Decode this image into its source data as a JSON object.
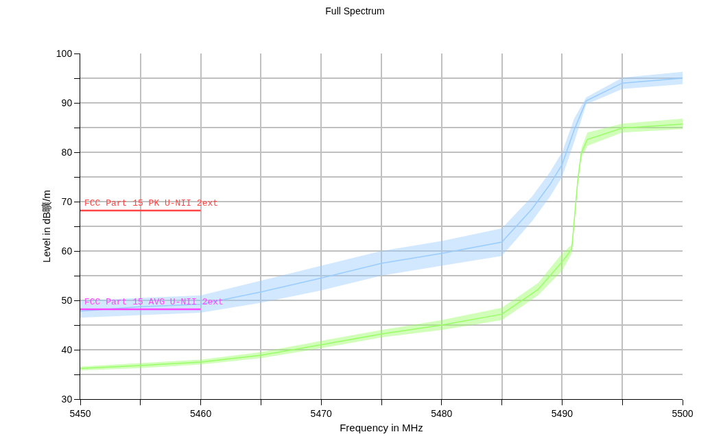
{
  "chart_data": {
    "type": "line",
    "title": "Full Spectrum",
    "xlabel": "Frequency in MHz",
    "ylabel": "Level in dB曠/m",
    "xlim": [
      5450,
      5500
    ],
    "ylim": [
      30,
      100
    ],
    "xticks": [
      5450,
      {
        "value": 5455,
        "label": null
      },
      5460,
      {
        "value": 5465,
        "label": null
      },
      5470,
      {
        "value": 5475,
        "label": null
      },
      5480,
      {
        "value": 5485,
        "label": null
      },
      5490,
      {
        "value": 5495,
        "label": null
      },
      5500
    ],
    "yticks": [
      30,
      {
        "value": 35,
        "label": null
      },
      40,
      {
        "value": 45,
        "label": null
      },
      50,
      {
        "value": 55,
        "label": null
      },
      60,
      {
        "value": 65,
        "label": null
      },
      70,
      {
        "value": 75,
        "label": null
      },
      80,
      {
        "value": 85,
        "label": null
      },
      90,
      {
        "value": 95,
        "label": null
      },
      100
    ],
    "grid": true,
    "legend": false,
    "marker": "none",
    "line_style": "solid",
    "series": [
      {
        "color": "#99ccff",
        "x": [
          5450,
          5455,
          5460,
          5465,
          5470,
          5475,
          5480,
          5485,
          5487.5,
          5489,
          5490,
          5491,
          5492,
          5495,
          5500
        ],
        "values": [
          47.8,
          48.7,
          49.2,
          51.7,
          54.5,
          57.5,
          59.5,
          61.8,
          68.5,
          73.5,
          77.5,
          84.5,
          90.4,
          94,
          95
        ],
        "lower": [
          46.5,
          47,
          47.5,
          49.5,
          52,
          55,
          57,
          59,
          66,
          71,
          75,
          82,
          89.7,
          92.8,
          93.8
        ],
        "upper": [
          50,
          50.5,
          51,
          54,
          57,
          60,
          62,
          64.6,
          71,
          76,
          80,
          86.8,
          91.1,
          95.1,
          96.3
        ]
      },
      {
        "color": "#99ff66",
        "x": [
          5450,
          5455,
          5460,
          5465,
          5470,
          5475,
          5480,
          5485,
          5488,
          5490,
          5490.8,
          5491.3,
          5491.6,
          5492.1,
          5495,
          5500
        ],
        "values": [
          36.2,
          36.8,
          37.5,
          38.9,
          41,
          43.2,
          45,
          47.2,
          52.2,
          57.8,
          60.4,
          74.3,
          79.9,
          82.6,
          84.9,
          85.7
        ],
        "lower": [
          35.8,
          36.3,
          37,
          38.3,
          40.3,
          42.5,
          44,
          46,
          51,
          56,
          59.5,
          73.5,
          79,
          81.3,
          84,
          84.7
        ],
        "upper": [
          36.6,
          37.3,
          38,
          39.5,
          41.8,
          44,
          46,
          48.5,
          53.5,
          59.5,
          61.3,
          75,
          80.8,
          84,
          85.8,
          86.8
        ]
      },
      {
        "name": "FCC Part 15 PK U-NII 2ext",
        "color": "#ff4444",
        "x": [
          5450,
          5460
        ],
        "values": [
          68.2,
          68.2
        ]
      },
      {
        "name": "FCC Part 15 AVG U-NII 2ext",
        "color": "#ff44ff",
        "x": [
          5450,
          5460
        ],
        "values": [
          48.2,
          48.2
        ]
      }
    ]
  }
}
